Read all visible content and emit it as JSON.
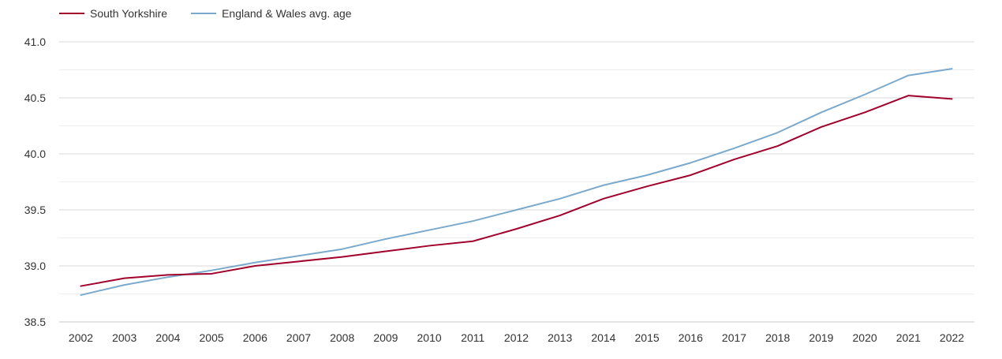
{
  "chart_data": {
    "type": "line",
    "title": "",
    "xlabel": "",
    "ylabel": "",
    "x": [
      "2002",
      "2003",
      "2004",
      "2005",
      "2006",
      "2007",
      "2008",
      "2009",
      "2010",
      "2011",
      "2012",
      "2013",
      "2014",
      "2015",
      "2016",
      "2017",
      "2018",
      "2019",
      "2020",
      "2021",
      "2022"
    ],
    "ylim": [
      38.5,
      41.0
    ],
    "yticks": [
      "38.5",
      "39.0",
      "39.5",
      "40.0",
      "40.5",
      "41.0"
    ],
    "grid": true,
    "legend_position": "top-left",
    "series": [
      {
        "name": "South Yorkshire",
        "color": "#a0002b",
        "values": [
          38.82,
          38.89,
          38.92,
          38.93,
          39.0,
          39.04,
          39.08,
          39.13,
          39.18,
          39.22,
          39.33,
          39.45,
          39.6,
          39.71,
          39.81,
          39.95,
          40.07,
          40.24,
          40.37,
          40.52,
          40.49
        ]
      },
      {
        "name": "England & Wales avg. age",
        "color": "#7ba9cc",
        "values": [
          38.74,
          38.83,
          38.9,
          38.96,
          39.03,
          39.09,
          39.15,
          39.24,
          39.32,
          39.4,
          39.5,
          39.6,
          39.72,
          39.81,
          39.92,
          40.05,
          40.19,
          40.37,
          40.53,
          40.7,
          40.76
        ]
      }
    ]
  }
}
